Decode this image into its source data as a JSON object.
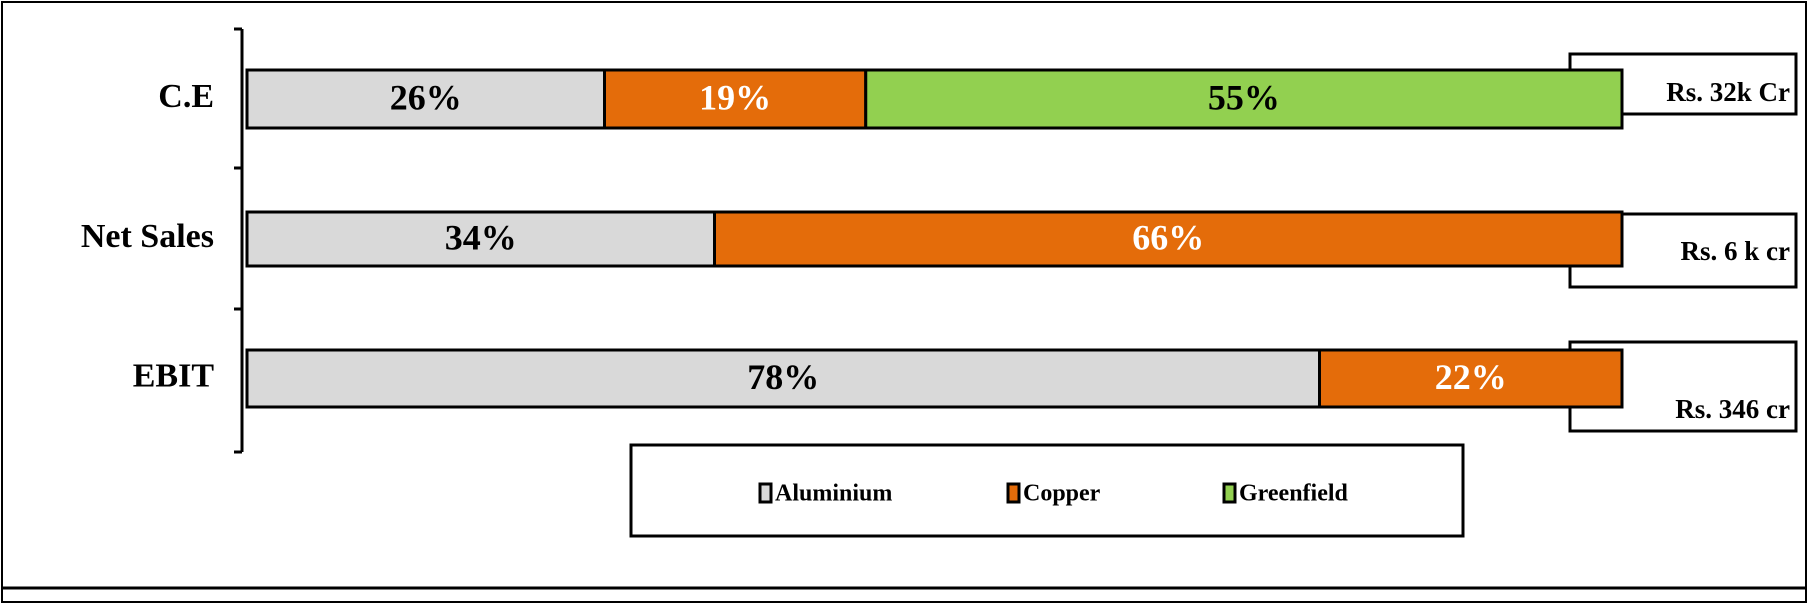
{
  "chart_data": {
    "type": "stacked-barh",
    "categories": [
      "C.E",
      "Net Sales",
      "EBIT"
    ],
    "series": [
      {
        "name": "Aluminium",
        "color": "#d9d9d9",
        "label_color": "#000000",
        "values": [
          26,
          34,
          78
        ],
        "value_labels": [
          "26%",
          "34%",
          "78%"
        ]
      },
      {
        "name": "Copper",
        "color": "#e46c0a",
        "label_color": "#ffffff",
        "values": [
          19,
          66,
          22
        ],
        "value_labels": [
          "19%",
          "66%",
          "22%"
        ]
      },
      {
        "name": "Greenfield",
        "color": "#92d050",
        "label_color": "#000000",
        "values": [
          55,
          null,
          null
        ],
        "value_labels": [
          "55%",
          null,
          null
        ]
      }
    ],
    "annotations": [
      "Rs. 32k Cr",
      "Rs. 6 k cr",
      "Rs. 346 cr"
    ],
    "xlim": [
      0,
      100
    ],
    "legend": "bottom"
  }
}
